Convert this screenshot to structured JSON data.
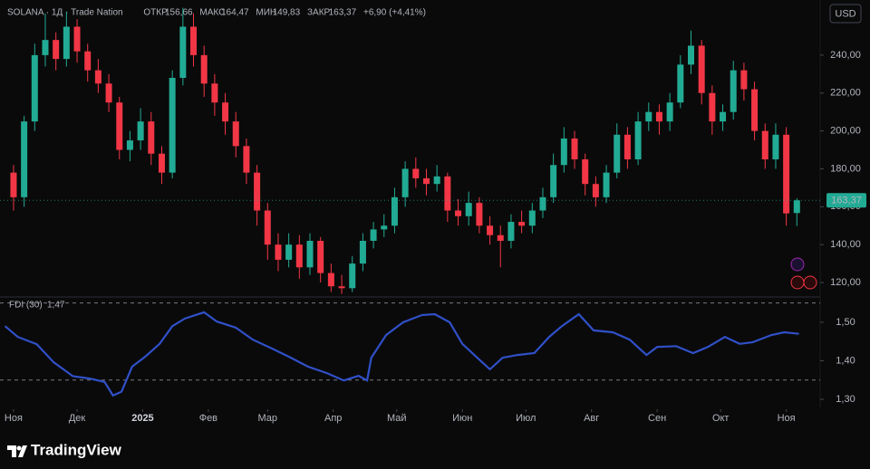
{
  "header": {
    "symbol": "SOLANA · 1Д · Trade Nation",
    "stats": [
      {
        "label": "ОТКР",
        "value": "156,66"
      },
      {
        "label": "МАКС",
        "value": "164,47"
      },
      {
        "label": "МИН",
        "value": "149,83"
      },
      {
        "label": "ЗАКР",
        "value": "163,37"
      }
    ],
    "change": "+6,90 (+4,41%)"
  },
  "currency": "USD",
  "brand": "TradingView",
  "chart_data": [
    {
      "type": "candlestick",
      "up_color": "#22ab94",
      "down_color": "#f23645",
      "last_label": "163,37",
      "xlim": [
        -6.4,
        381
      ],
      "ylim": [
        113.8,
        269.1
      ],
      "xticks": [
        {
          "value": 0,
          "label": "Ноя"
        },
        {
          "value": 30,
          "label": "Дек"
        },
        {
          "value": 61,
          "label": "2025"
        },
        {
          "value": 92,
          "label": "Фев"
        },
        {
          "value": 120,
          "label": "Мар"
        },
        {
          "value": 151,
          "label": "Апр"
        },
        {
          "value": 181,
          "label": "Май"
        },
        {
          "value": 212,
          "label": "Июн"
        },
        {
          "value": 242,
          "label": "Июл"
        },
        {
          "value": 273,
          "label": "Авг"
        },
        {
          "value": 304,
          "label": "Сен"
        },
        {
          "value": 334,
          "label": "Окт"
        },
        {
          "value": 365,
          "label": "Ноя"
        }
      ],
      "yticks": [
        {
          "value": 120,
          "label": "120,00"
        },
        {
          "value": 140,
          "label": "140,00"
        },
        {
          "value": 160,
          "label": "160,00"
        },
        {
          "value": 180,
          "label": "180,00"
        },
        {
          "value": 200,
          "label": "200,00"
        },
        {
          "value": 220,
          "label": "220,00"
        },
        {
          "value": 240,
          "label": "240,00"
        }
      ],
      "x": [
        0,
        5,
        10,
        15,
        20,
        25,
        30,
        35,
        40,
        45,
        50,
        55,
        60,
        65,
        70,
        75,
        80,
        85,
        90,
        95,
        100,
        105,
        110,
        115,
        120,
        125,
        130,
        135,
        140,
        145,
        150,
        155,
        160,
        165,
        170,
        175,
        180,
        185,
        190,
        195,
        200,
        205,
        210,
        215,
        220,
        225,
        230,
        235,
        240,
        245,
        250,
        255,
        260,
        265,
        270,
        275,
        280,
        285,
        290,
        295,
        300,
        305,
        310,
        315,
        320,
        325,
        330,
        335,
        340,
        345,
        350,
        355,
        360,
        365,
        370
      ],
      "open": [
        178,
        165,
        205,
        240,
        248,
        238,
        255,
        242,
        232,
        225,
        215,
        190,
        195,
        205,
        188,
        178,
        228,
        255,
        240,
        225,
        215,
        205,
        192,
        178,
        158,
        140,
        132,
        140,
        128,
        142,
        125,
        118,
        117,
        130,
        142,
        148,
        150,
        165,
        180,
        175,
        172,
        176,
        158,
        155,
        162,
        150,
        145,
        142,
        152,
        150,
        158,
        165,
        182,
        196,
        185,
        172,
        165,
        178,
        198,
        185,
        205,
        210,
        205,
        215,
        235,
        245,
        220,
        205,
        210,
        232,
        222,
        200,
        185,
        198,
        156.66
      ],
      "high": [
        182,
        208,
        246,
        262,
        252,
        263,
        259,
        246,
        238,
        230,
        218,
        200,
        212,
        210,
        192,
        232,
        265,
        262,
        245,
        230,
        220,
        210,
        196,
        182,
        162,
        146,
        146,
        145,
        146,
        144,
        130,
        124,
        134,
        146,
        152,
        156,
        170,
        184,
        186,
        180,
        182,
        178,
        164,
        168,
        165,
        155,
        150,
        156,
        158,
        162,
        170,
        188,
        202,
        200,
        188,
        176,
        182,
        204,
        202,
        210,
        215,
        214,
        220,
        240,
        253,
        248,
        224,
        214,
        237,
        236,
        226,
        204,
        204,
        202,
        164.47
      ],
      "low": [
        158,
        160,
        200,
        234,
        232,
        234,
        236,
        226,
        220,
        210,
        185,
        184,
        190,
        182,
        172,
        175,
        224,
        234,
        218,
        208,
        198,
        186,
        172,
        150,
        132,
        126,
        128,
        122,
        124,
        120,
        115,
        114,
        115,
        126,
        138,
        144,
        146,
        160,
        170,
        166,
        168,
        152,
        150,
        150,
        146,
        140,
        128,
        138,
        146,
        146,
        154,
        162,
        178,
        180,
        166,
        160,
        162,
        175,
        180,
        182,
        200,
        198,
        200,
        212,
        230,
        214,
        198,
        200,
        206,
        216,
        195,
        180,
        180,
        150,
        149.83
      ],
      "close": [
        165,
        205,
        240,
        248,
        238,
        255,
        242,
        232,
        225,
        215,
        190,
        195,
        205,
        188,
        178,
        228,
        255,
        240,
        225,
        215,
        205,
        192,
        178,
        158,
        140,
        132,
        140,
        128,
        142,
        125,
        118,
        117,
        130,
        142,
        148,
        150,
        165,
        180,
        175,
        172,
        176,
        158,
        155,
        162,
        150,
        145,
        142,
        152,
        150,
        158,
        165,
        182,
        196,
        185,
        172,
        165,
        178,
        198,
        185,
        205,
        210,
        205,
        215,
        235,
        245,
        220,
        205,
        210,
        232,
        222,
        200,
        185,
        198,
        156.47,
        163.37
      ]
    },
    {
      "type": "line",
      "name": "FDI (30)",
      "value_label": "1,47",
      "color": "#3050c8",
      "xlim": [
        -6.4,
        381
      ],
      "ylim": [
        1.279,
        1.561
      ],
      "levels": [
        1.55,
        1.35
      ],
      "yticks": [
        {
          "value": 1.5,
          "label": "1,50"
        },
        {
          "value": 1.4,
          "label": "1,40"
        },
        {
          "value": 1.3,
          "label": "1,30"
        }
      ],
      "x": [
        -4,
        2,
        11,
        19,
        28,
        36,
        43,
        47,
        51,
        56,
        62,
        69,
        75,
        81,
        90,
        96,
        105,
        113,
        122,
        131,
        139,
        148,
        156,
        163,
        167,
        169,
        176,
        184,
        193,
        199,
        206,
        212,
        219,
        225,
        231,
        238,
        246,
        253,
        259,
        267,
        274,
        283,
        291,
        299,
        304,
        313,
        321,
        328,
        336,
        343,
        349,
        358,
        364,
        371
      ],
      "values": [
        1.49,
        1.462,
        1.443,
        1.396,
        1.36,
        1.354,
        1.345,
        1.31,
        1.32,
        1.385,
        1.41,
        1.444,
        1.49,
        1.51,
        1.526,
        1.502,
        1.486,
        1.455,
        1.432,
        1.408,
        1.385,
        1.368,
        1.349,
        1.361,
        1.349,
        1.408,
        1.467,
        1.5,
        1.519,
        1.521,
        1.5,
        1.444,
        1.408,
        1.378,
        1.408,
        1.415,
        1.42,
        1.462,
        1.49,
        1.521,
        1.479,
        1.474,
        1.455,
        1.415,
        1.436,
        1.438,
        1.42,
        1.436,
        1.462,
        1.444,
        1.448,
        1.467,
        1.474,
        1.47
      ]
    }
  ]
}
